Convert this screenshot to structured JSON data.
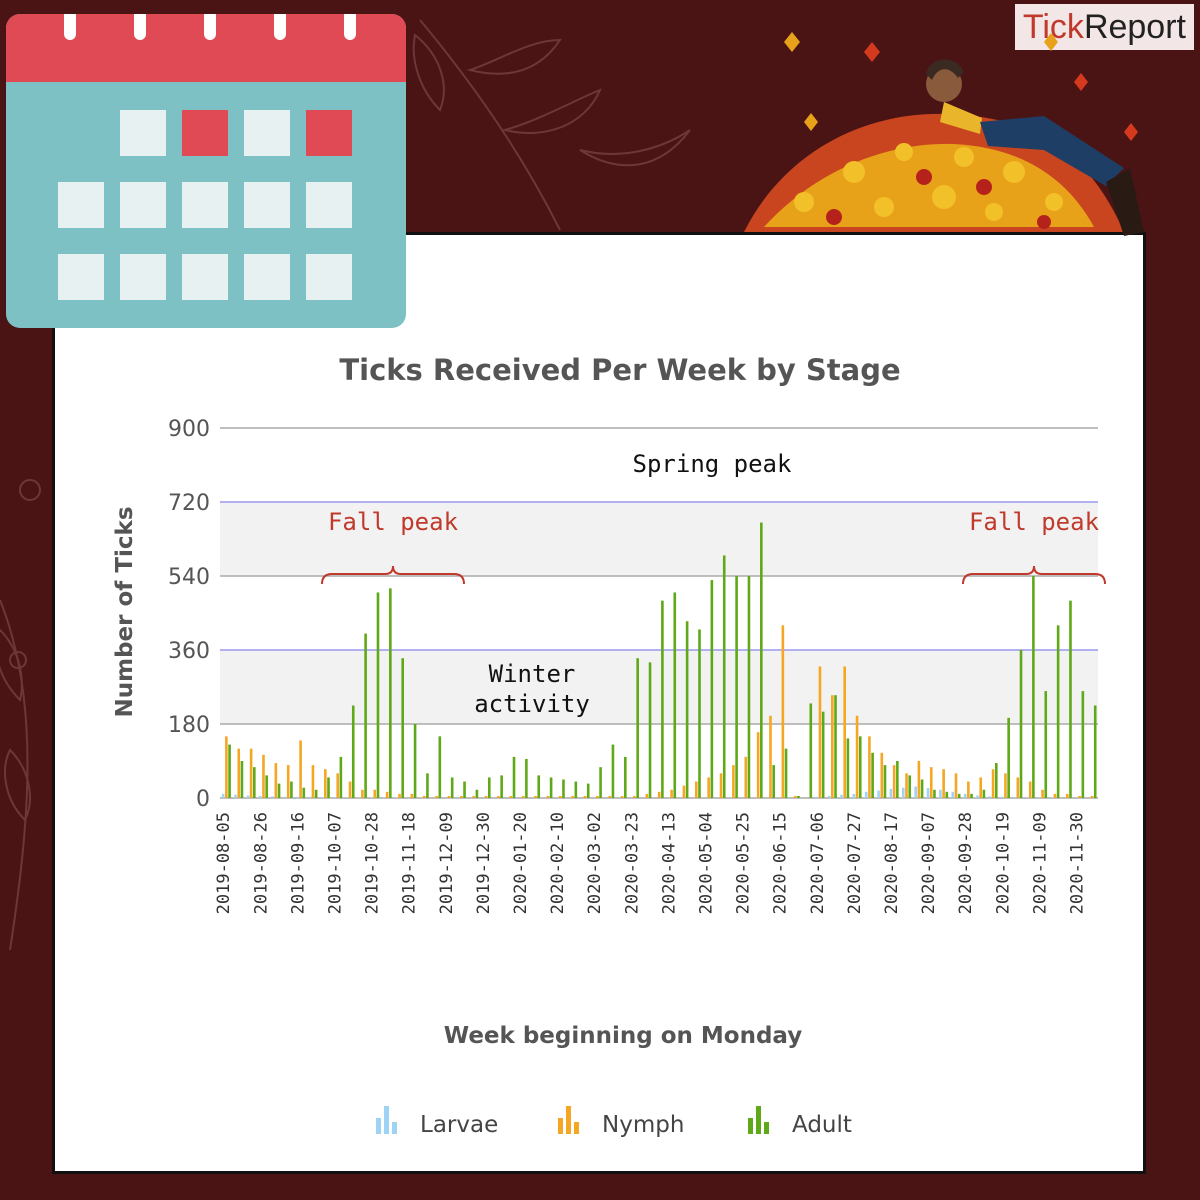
{
  "brand": {
    "part1": "Tick",
    "part2": "Report"
  },
  "colors": {
    "background": "#4a1414",
    "larvae": "#9fd3f5",
    "nymph": "#f5a623",
    "adult": "#5fa818",
    "annot_red": "#c0392b"
  },
  "icons": [
    "calendar-icon",
    "person-in-leaves-illustration"
  ],
  "chart_data": {
    "type": "bar",
    "title": "Ticks Received Per Week by Stage",
    "xlabel": "Week beginning on Monday",
    "ylabel": "Number of Ticks",
    "ylim": [
      0,
      900
    ],
    "yticks": [
      0,
      180,
      360,
      540,
      720,
      900
    ],
    "grid": true,
    "legend_position": "bottom",
    "x_tick_labels": [
      "2019-08-05",
      "2019-08-26",
      "2019-09-16",
      "2019-10-07",
      "2019-10-28",
      "2019-11-18",
      "2019-12-09",
      "2019-12-30",
      "2020-01-20",
      "2020-02-10",
      "2020-03-02",
      "2020-03-23",
      "2020-04-13",
      "2020-05-04",
      "2020-05-25",
      "2020-06-15",
      "2020-07-06",
      "2020-07-27",
      "2020-08-17",
      "2020-09-07",
      "2020-09-28",
      "2020-10-19",
      "2020-11-09",
      "2020-11-30"
    ],
    "weeks": 71,
    "series": [
      {
        "name": "Larvae",
        "values": [
          10,
          8,
          6,
          5,
          4,
          3,
          3,
          3,
          2,
          2,
          1,
          1,
          1,
          1,
          1,
          0,
          0,
          0,
          0,
          0,
          0,
          0,
          0,
          0,
          0,
          0,
          0,
          0,
          0,
          0,
          0,
          0,
          0,
          0,
          0,
          0,
          0,
          0,
          0,
          0,
          0,
          0,
          0,
          0,
          0,
          0,
          0,
          0,
          3,
          5,
          8,
          10,
          15,
          18,
          22,
          25,
          28,
          24,
          20,
          15,
          10,
          6,
          4,
          3,
          2,
          1,
          1,
          1,
          0,
          0,
          0
        ]
      },
      {
        "name": "Nymph",
        "values": [
          150,
          120,
          120,
          105,
          85,
          80,
          140,
          80,
          70,
          60,
          40,
          20,
          20,
          15,
          10,
          10,
          5,
          5,
          5,
          5,
          5,
          5,
          5,
          5,
          5,
          5,
          5,
          5,
          5,
          5,
          5,
          5,
          5,
          5,
          10,
          15,
          20,
          30,
          40,
          50,
          60,
          80,
          100,
          160,
          200,
          420,
          5,
          0,
          320,
          250,
          320,
          200,
          150,
          110,
          80,
          60,
          90,
          75,
          70,
          60,
          40,
          50,
          70,
          60,
          50,
          40,
          20,
          10,
          10,
          5,
          5
        ]
      },
      {
        "name": "Adult",
        "values": [
          130,
          90,
          75,
          55,
          35,
          40,
          25,
          20,
          50,
          100,
          225,
          400,
          500,
          510,
          340,
          180,
          60,
          150,
          50,
          40,
          20,
          50,
          55,
          100,
          95,
          55,
          50,
          45,
          40,
          35,
          75,
          130,
          100,
          340,
          330,
          480,
          500,
          430,
          410,
          530,
          590,
          540,
          540,
          670,
          80,
          120,
          5,
          230,
          210,
          250,
          145,
          150,
          110,
          80,
          90,
          55,
          45,
          20,
          15,
          10,
          10,
          20,
          85,
          195,
          360,
          540,
          260,
          420,
          480,
          260,
          225
        ]
      }
    ],
    "annotations": [
      {
        "text": "Fall peak",
        "color": "#c0392b"
      },
      {
        "text": "Spring peak",
        "color": "#111111"
      },
      {
        "text": "Winter",
        "color": "#111111"
      },
      {
        "text": "activity",
        "color": "#111111"
      },
      {
        "text": "Fall peak",
        "color": "#c0392b"
      }
    ]
  }
}
